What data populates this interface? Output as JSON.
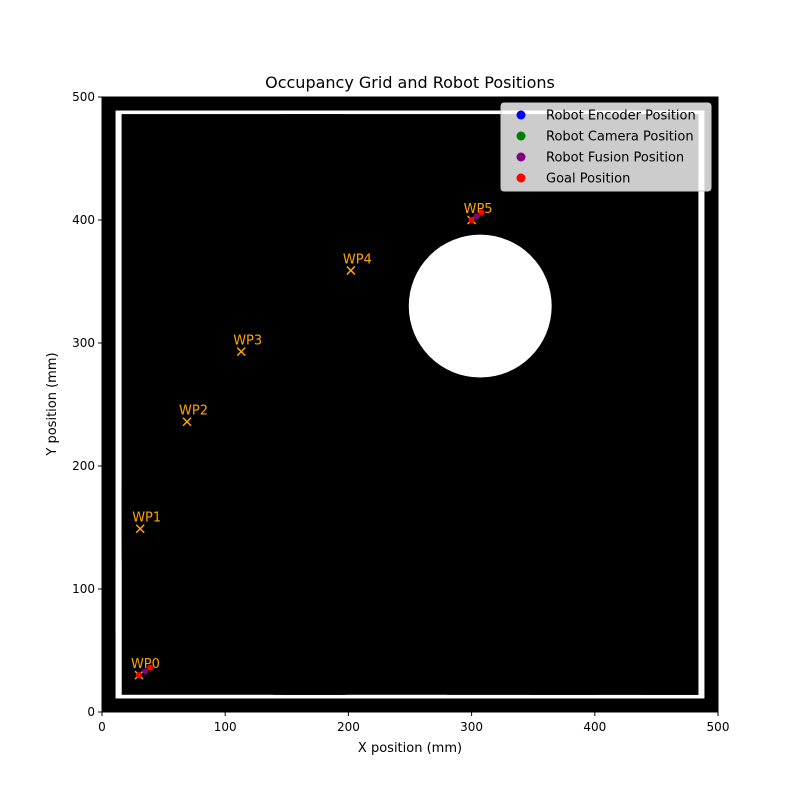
{
  "chart_data": {
    "type": "scatter",
    "title": "Occupancy Grid and Robot Positions",
    "xlabel": "X position (mm)",
    "ylabel": "Y position (mm)",
    "xlim": [
      0,
      500
    ],
    "ylim": [
      0,
      500
    ],
    "xticks": [
      "0",
      "100",
      "200",
      "300",
      "400",
      "500"
    ],
    "yticks": [
      "0",
      "100",
      "200",
      "300",
      "400",
      "500"
    ],
    "grid": false,
    "legend_position": "top-right",
    "colors": {
      "background": "#000000",
      "free_space": "#ffffff",
      "waypoint": "#ffa500",
      "encoder": "#0000ff",
      "camera": "#008000",
      "fusion": "#800080",
      "goal": "#ff0000"
    },
    "legend": [
      {
        "label": "Robot Encoder Position",
        "color": "#0000ff"
      },
      {
        "label": "Robot Camera Position",
        "color": "#008000"
      },
      {
        "label": "Robot Fusion Position",
        "color": "#800080"
      },
      {
        "label": "Goal Position",
        "color": "#ff0000"
      }
    ],
    "waypoints": [
      {
        "label": "WP0",
        "x": 30,
        "y": 30
      },
      {
        "label": "WP1",
        "x": 31,
        "y": 149
      },
      {
        "label": "WP2",
        "x": 69,
        "y": 236
      },
      {
        "label": "WP3",
        "x": 113,
        "y": 293
      },
      {
        "label": "WP4",
        "x": 202,
        "y": 359
      },
      {
        "label": "WP5",
        "x": 300,
        "y": 400
      }
    ],
    "trajectory_points": [
      {
        "x": 30,
        "y": 30,
        "color": "#ff0000"
      },
      {
        "x": 35,
        "y": 33,
        "color": "#800080"
      },
      {
        "x": 39,
        "y": 36,
        "color": "#ff0000"
      },
      {
        "x": 300,
        "y": 400,
        "color": "#ff0000"
      },
      {
        "x": 304,
        "y": 403,
        "color": "#800080"
      },
      {
        "x": 308,
        "y": 406,
        "color": "#ff0000"
      }
    ],
    "free_space_rects": [
      {
        "x0": 11,
        "y0": 11,
        "x1": 489,
        "y1": 489
      },
      {
        "x0": 64,
        "y0": 273,
        "x1": 73,
        "y1": 441
      },
      {
        "x0": 73,
        "y0": 350,
        "x1": 146,
        "y1": 442
      },
      {
        "x0": 66,
        "y0": 183,
        "x1": 146,
        "y1": 237
      },
      {
        "x0": 128,
        "y0": 237,
        "x1": 146,
        "y1": 330
      },
      {
        "x0": 195,
        "y0": 375,
        "x1": 214,
        "y1": 441
      },
      {
        "x0": 214,
        "y0": 420,
        "x1": 274,
        "y1": 441
      },
      {
        "x0": 199,
        "y0": 184,
        "x1": 280,
        "y1": 318
      },
      {
        "x0": 410,
        "y0": 348,
        "x1": 444,
        "y1": 441
      },
      {
        "x0": 345,
        "y0": 221,
        "x1": 437,
        "y1": 300
      },
      {
        "x0": 11,
        "y0": 64,
        "x1": 139,
        "y1": 123
      },
      {
        "x0": 198,
        "y0": 62,
        "x1": 348,
        "y1": 127
      },
      {
        "x0": 330,
        "y0": 127,
        "x1": 348,
        "y1": 164
      },
      {
        "x0": 400,
        "y0": 58,
        "x1": 438,
        "y1": 168
      }
    ],
    "obstacles": [
      {
        "shape": "rect",
        "x0": 16,
        "y0": 14,
        "x1": 484,
        "y1": 486
      },
      {
        "shape": "rect",
        "x0": 146,
        "y0": 14,
        "x1": 196,
        "y1": 486
      },
      {
        "shape": "rect",
        "x0": 139,
        "y0": 14,
        "x1": 198,
        "y1": 135
      },
      {
        "shape": "rect",
        "x0": 16,
        "y0": 135,
        "x1": 330,
        "y1": 183
      },
      {
        "shape": "rect",
        "x0": 348,
        "y0": 14,
        "x1": 400,
        "y1": 300
      },
      {
        "shape": "rect",
        "x0": 280,
        "y0": 14,
        "x1": 484,
        "y1": 58
      },
      {
        "shape": "rect",
        "x0": 438,
        "y0": 14,
        "x1": 484,
        "y1": 486
      },
      {
        "shape": "rect",
        "x0": 73,
        "y0": 237,
        "x1": 128,
        "y1": 350
      },
      {
        "shape": "rect",
        "x0": 16,
        "y0": 123,
        "x1": 64,
        "y1": 486
      },
      {
        "shape": "rect",
        "x0": 64,
        "y0": 441,
        "x1": 484,
        "y1": 486
      },
      {
        "shape": "ring",
        "cx": 307,
        "cy": 330,
        "r_outer": 110,
        "r_inner": 58
      }
    ]
  }
}
